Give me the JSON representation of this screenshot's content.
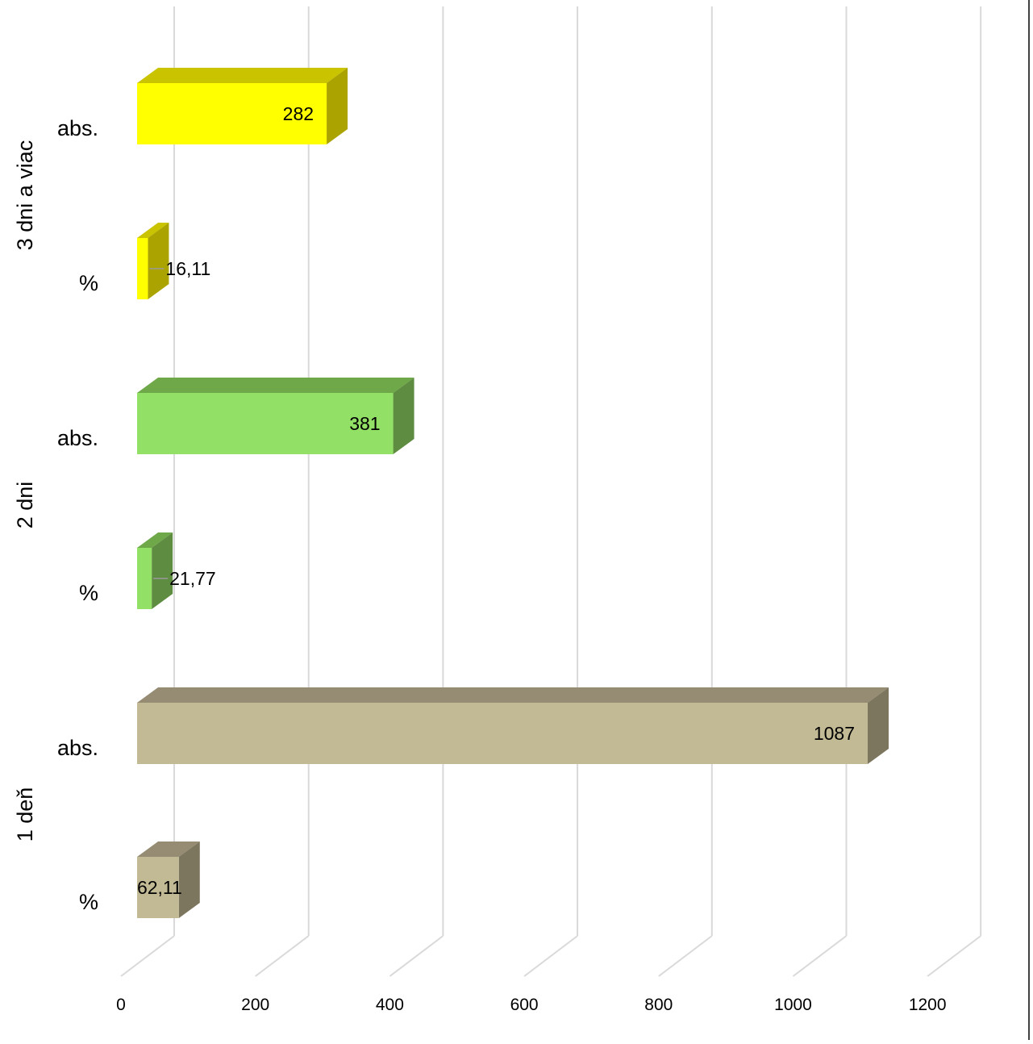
{
  "chart_data": {
    "type": "bar",
    "orientation": "horizontal",
    "style": "3d",
    "title": "",
    "xlabel": "",
    "ylabel": "",
    "xlim": [
      0,
      1200
    ],
    "x_ticks": [
      "0",
      "200",
      "400",
      "600",
      "800",
      "1000",
      "1200"
    ],
    "grid": true,
    "legend": "none",
    "groups": [
      {
        "name": "3 dni a viac",
        "colors": {
          "front": "#ffff00",
          "top": "#c9c300",
          "side": "#aaa300"
        },
        "bars": [
          {
            "category": "abs.",
            "value": 282,
            "label": "282"
          },
          {
            "category": "%",
            "value": 16.11,
            "label": "16,11"
          }
        ]
      },
      {
        "name": "2 dni",
        "colors": {
          "front": "#92e065",
          "top": "#6fa848",
          "side": "#5e8c40"
        },
        "bars": [
          {
            "category": "abs.",
            "value": 381,
            "label": "381"
          },
          {
            "category": "%",
            "value": 21.77,
            "label": "21,77"
          }
        ]
      },
      {
        "name": "1 deň",
        "colors": {
          "front": "#c2b995",
          "top": "#958c73",
          "side": "#7d765f"
        },
        "bars": [
          {
            "category": "abs.",
            "value": 1087,
            "label": "1087"
          },
          {
            "category": "%",
            "value": 62.11,
            "label": "62,11"
          }
        ]
      }
    ]
  }
}
